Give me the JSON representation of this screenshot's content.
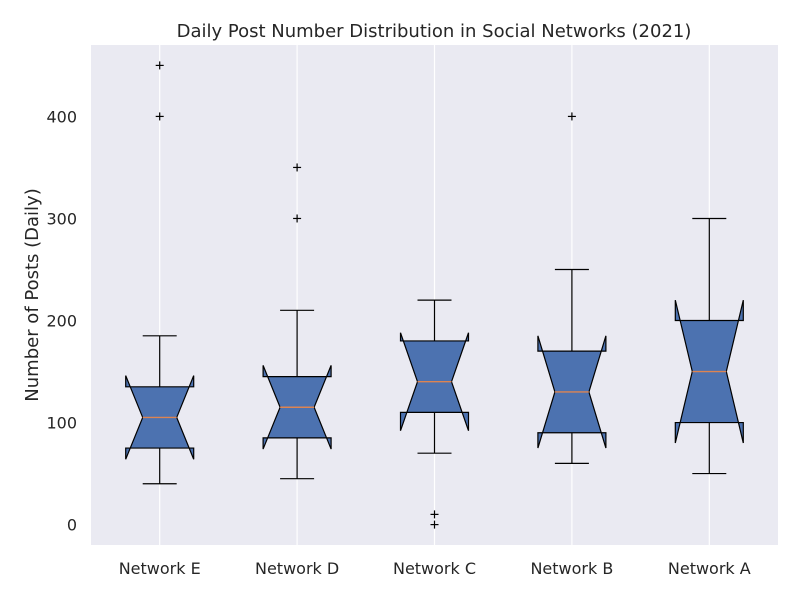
{
  "chart_data": {
    "type": "boxplot",
    "title": "Daily Post Number Distribution in Social Networks (2021)",
    "xlabel": "",
    "ylabel": "Number of Posts (Daily)",
    "ylim": [
      -20,
      470
    ],
    "yticks": [
      0,
      100,
      200,
      300,
      400
    ],
    "grid": "vertical",
    "notched": true,
    "box_color": "#4c72b0",
    "median_color": "#dd8452",
    "background_color": "#eaeaf2",
    "categories": [
      "Network E",
      "Network D",
      "Network C",
      "Network B",
      "Network A"
    ],
    "boxes": [
      {
        "label": "Network E",
        "whisker_low": 40,
        "q1": 75,
        "median": 105,
        "q3": 135,
        "whisker_high": 185,
        "notch_low": 64,
        "notch_high": 146,
        "outliers": [
          400,
          450
        ]
      },
      {
        "label": "Network D",
        "whisker_low": 45,
        "q1": 85,
        "median": 115,
        "q3": 145,
        "whisker_high": 210,
        "notch_low": 74,
        "notch_high": 156,
        "outliers": [
          300,
          350
        ]
      },
      {
        "label": "Network C",
        "whisker_low": 70,
        "q1": 110,
        "median": 140,
        "q3": 180,
        "whisker_high": 220,
        "notch_low": 92,
        "notch_high": 188,
        "outliers": [
          0,
          10
        ]
      },
      {
        "label": "Network B",
        "whisker_low": 60,
        "q1": 90,
        "median": 130,
        "q3": 170,
        "whisker_high": 250,
        "notch_low": 75,
        "notch_high": 185,
        "outliers": [
          400
        ]
      },
      {
        "label": "Network A",
        "whisker_low": 50,
        "q1": 100,
        "median": 150,
        "q3": 200,
        "whisker_high": 300,
        "notch_low": 80,
        "notch_high": 220,
        "outliers": []
      }
    ]
  }
}
